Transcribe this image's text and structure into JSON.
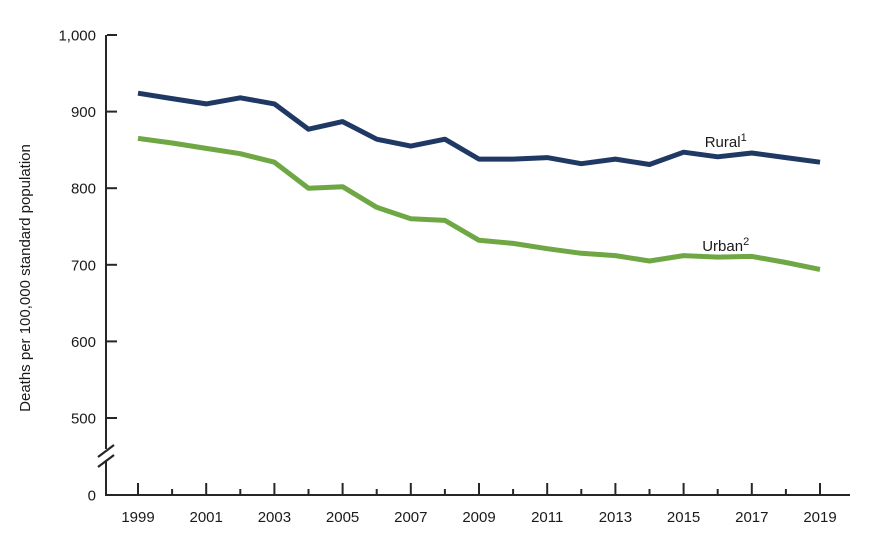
{
  "chart_data": {
    "type": "line",
    "title": "",
    "xlabel": "",
    "ylabel": "Deaths per 100,000 standard population",
    "x": [
      1999,
      2000,
      2001,
      2002,
      2003,
      2004,
      2005,
      2006,
      2007,
      2008,
      2009,
      2010,
      2011,
      2012,
      2013,
      2014,
      2015,
      2016,
      2017,
      2018,
      2019
    ],
    "series": [
      {
        "name": "Rural",
        "superscript": "1",
        "color": "#1f3864",
        "values": [
          924,
          917,
          910,
          918,
          910,
          877,
          887,
          864,
          855,
          864,
          838,
          838,
          840,
          832,
          838,
          831,
          847,
          841,
          846,
          840,
          834
        ]
      },
      {
        "name": "Urban",
        "superscript": "2",
        "color": "#6fa744",
        "values": [
          865,
          859,
          852,
          845,
          834,
          800,
          802,
          775,
          760,
          758,
          732,
          728,
          721,
          715,
          712,
          705,
          712,
          710,
          711,
          703,
          694
        ]
      }
    ],
    "y_ticks": [
      {
        "value": 1000,
        "label": "1,000"
      },
      {
        "value": 900,
        "label": "900"
      },
      {
        "value": 800,
        "label": "800"
      },
      {
        "value": 700,
        "label": "700"
      },
      {
        "value": 600,
        "label": "600"
      },
      {
        "value": 500,
        "label": "500"
      },
      {
        "value": 0,
        "label": "0"
      }
    ],
    "x_tick_labels": [
      "1999",
      "2001",
      "2003",
      "2005",
      "2007",
      "2009",
      "2011",
      "2013",
      "2015",
      "2017",
      "2019"
    ],
    "axis": {
      "ylim": [
        0,
        1000
      ],
      "y_break_below": 500,
      "x_range": [
        1999,
        2019
      ],
      "grid": false,
      "tick_direction": "inward"
    },
    "legend": {
      "position": "inline-annotations",
      "entries": [
        "Rural1",
        "Urban2"
      ]
    },
    "colors": {
      "axis": "#262626",
      "text": "#1a1a1a",
      "background": "#ffffff"
    }
  }
}
